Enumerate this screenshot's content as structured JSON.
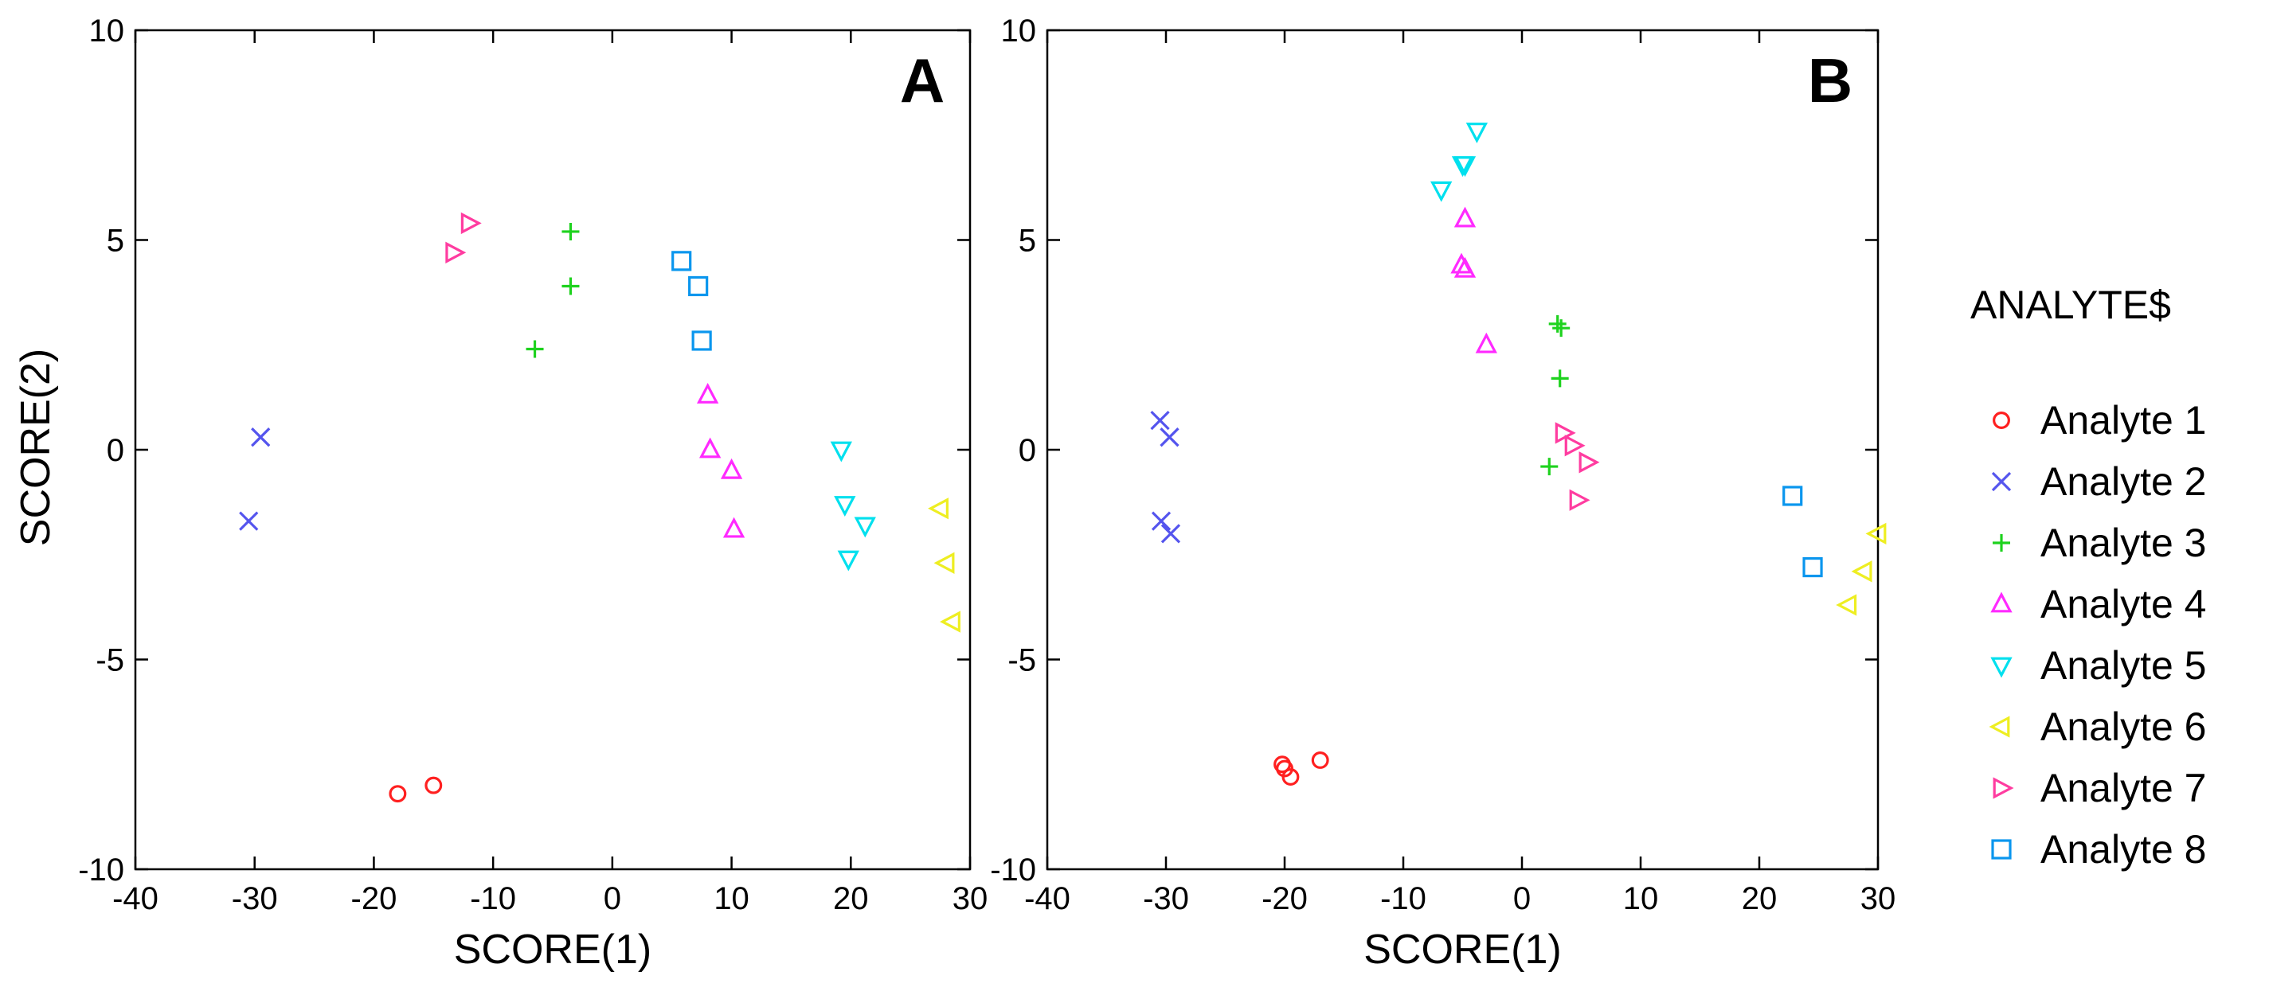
{
  "chart_data": [
    {
      "type": "scatter",
      "panel_label": "A",
      "xlabel": "SCORE(1)",
      "ylabel": "SCORE(2)",
      "xlim": [
        -40,
        30
      ],
      "ylim": [
        -10,
        10
      ],
      "xticks": [
        -40,
        -30,
        -20,
        -10,
        0,
        10,
        20,
        30
      ],
      "yticks": [
        -10,
        -5,
        0,
        5,
        10
      ],
      "series": [
        {
          "name": "Analyte 1",
          "points": [
            [
              -18,
              -8.2
            ],
            [
              -15,
              -8.0
            ]
          ]
        },
        {
          "name": "Analyte 2",
          "points": [
            [
              -29.5,
              0.3
            ],
            [
              -30.5,
              -1.7
            ]
          ]
        },
        {
          "name": "Analyte 3",
          "points": [
            [
              -3.5,
              5.2
            ],
            [
              -3.5,
              3.9
            ],
            [
              -6.5,
              2.4
            ]
          ]
        },
        {
          "name": "Analyte 4",
          "points": [
            [
              8.0,
              1.3
            ],
            [
              8.2,
              0.0
            ],
            [
              10.0,
              -0.5
            ],
            [
              10.2,
              -1.9
            ]
          ]
        },
        {
          "name": "Analyte 5",
          "points": [
            [
              19.2,
              0.0
            ],
            [
              19.5,
              -1.3
            ],
            [
              21.2,
              -1.8
            ],
            [
              19.8,
              -2.6
            ]
          ]
        },
        {
          "name": "Analyte 6",
          "points": [
            [
              27.5,
              -1.4
            ],
            [
              28.0,
              -2.7
            ],
            [
              28.5,
              -4.1
            ]
          ]
        },
        {
          "name": "Analyte 7",
          "points": [
            [
              -12.0,
              5.4
            ],
            [
              -13.3,
              4.7
            ]
          ]
        },
        {
          "name": "Analyte 8",
          "points": [
            [
              5.8,
              4.5
            ],
            [
              7.2,
              3.9
            ],
            [
              7.5,
              2.6
            ]
          ]
        }
      ]
    },
    {
      "type": "scatter",
      "panel_label": "B",
      "xlabel": "SCORE(1)",
      "ylabel": "",
      "xlim": [
        -40,
        30
      ],
      "ylim": [
        -10,
        10
      ],
      "xticks": [
        -40,
        -30,
        -20,
        -10,
        0,
        10,
        20,
        30
      ],
      "yticks": [
        -10,
        -5,
        0,
        5,
        10
      ],
      "series": [
        {
          "name": "Analyte 1",
          "points": [
            [
              -20.2,
              -7.5
            ],
            [
              -19.5,
              -7.8
            ],
            [
              -20.0,
              -7.6
            ],
            [
              -17.0,
              -7.4
            ]
          ]
        },
        {
          "name": "Analyte 2",
          "points": [
            [
              -30.5,
              0.7
            ],
            [
              -29.7,
              0.3
            ],
            [
              -30.4,
              -1.7
            ],
            [
              -29.6,
              -2.0
            ]
          ]
        },
        {
          "name": "Analyte 3",
          "points": [
            [
              3.0,
              3.0
            ],
            [
              3.3,
              2.9
            ],
            [
              3.2,
              1.7
            ],
            [
              2.3,
              -0.4
            ]
          ]
        },
        {
          "name": "Analyte 4",
          "points": [
            [
              -4.8,
              5.5
            ],
            [
              -5.1,
              4.4
            ],
            [
              -4.8,
              4.3
            ],
            [
              -3.0,
              2.5
            ]
          ]
        },
        {
          "name": "Analyte 5",
          "points": [
            [
              -3.8,
              7.6
            ],
            [
              -5.0,
              6.8
            ],
            [
              -4.8,
              6.8
            ],
            [
              -6.8,
              6.2
            ]
          ]
        },
        {
          "name": "Analyte 6",
          "points": [
            [
              30.0,
              -2.0
            ],
            [
              28.8,
              -2.9
            ],
            [
              27.5,
              -3.7
            ]
          ]
        },
        {
          "name": "Analyte 7",
          "points": [
            [
              3.5,
              0.4
            ],
            [
              4.3,
              0.1
            ],
            [
              5.5,
              -0.3
            ],
            [
              4.7,
              -1.2
            ]
          ]
        },
        {
          "name": "Analyte 8",
          "points": [
            [
              22.8,
              -1.1
            ],
            [
              24.5,
              -2.8
            ]
          ]
        }
      ]
    }
  ],
  "legend": {
    "title": "ANALYTE$",
    "items": [
      {
        "name": "Analyte 1",
        "marker": "circle",
        "color": "#ff2020"
      },
      {
        "name": "Analyte 2",
        "marker": "x",
        "color": "#5555ee"
      },
      {
        "name": "Analyte 3",
        "marker": "plus",
        "color": "#1ed21e"
      },
      {
        "name": "Analyte 4",
        "marker": "triangle-up",
        "color": "#ff2aff"
      },
      {
        "name": "Analyte 5",
        "marker": "triangle-down",
        "color": "#00e0ee"
      },
      {
        "name": "Analyte 6",
        "marker": "triangle-left",
        "color": "#eeee22"
      },
      {
        "name": "Analyte 7",
        "marker": "triangle-right",
        "color": "#ff3ca0"
      },
      {
        "name": "Analyte 8",
        "marker": "square",
        "color": "#0a96ee"
      }
    ]
  }
}
